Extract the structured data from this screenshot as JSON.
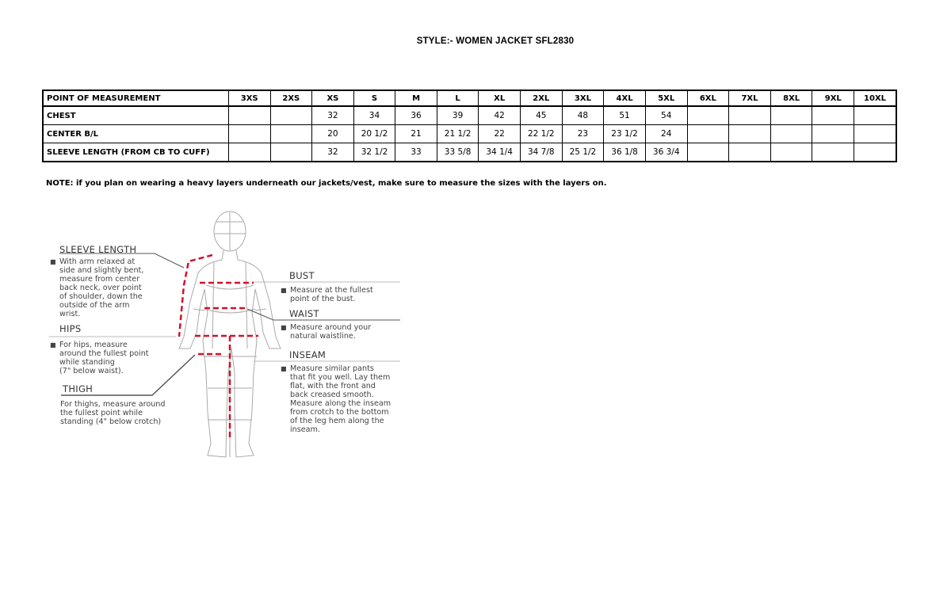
{
  "title": "STYLE:- WOMEN JACKET   SFL2830",
  "table": {
    "header": [
      "POINT OF MEASUREMENT",
      "3XS",
      "2XS",
      "XS",
      "S",
      "M",
      "L",
      "XL",
      "2XL",
      "3XL",
      "4XL",
      "5XL",
      "6XL",
      "7XL",
      "8XL",
      "9XL",
      "10XL"
    ],
    "rows": [
      [
        "CHEST",
        "",
        "",
        "32",
        "34",
        "36",
        "39",
        "42",
        "45",
        "48",
        "51",
        "54",
        "",
        "",
        "",
        "",
        ""
      ],
      [
        "CENTER B/L",
        "",
        "",
        "20",
        "20 1/2",
        "21",
        "21 1/2",
        "22",
        "22 1/2",
        "23",
        "23 1/2",
        "24",
        "",
        "",
        "",
        "",
        ""
      ],
      [
        "SLEEVE LENGTH (FROM CB TO CUFF)",
        "",
        "",
        "32",
        "32 1/2",
        "33",
        "33 5/8",
        "34 1/4",
        "34 7/8",
        "25 1/2",
        "36 1/8",
        "36 3/4",
        "",
        "",
        "",
        "",
        ""
      ]
    ]
  },
  "note": "NOTE: if you plan on wearing a heavy layers underneath our jackets/vest, make sure to measure the sizes with the layers on.",
  "diagram": {
    "accent_color": "#d0122a",
    "sleeve": {
      "label": "SLEEVE LENGTH",
      "lines": [
        "With arm relaxed at",
        "side and slightly bent,",
        "measure from center",
        "back neck, over point",
        "of shoulder, down the",
        "outside of the arm",
        "wrist."
      ]
    },
    "hips": {
      "label": "HIPS",
      "lines": [
        "For hips, measure",
        "around the fullest point",
        "while standing",
        "(7\" below waist)."
      ]
    },
    "thigh": {
      "label": "THIGH",
      "lines": [
        "For thighs, measure around",
        "the fullest point while",
        "standing (4\" below crotch)"
      ]
    },
    "bust": {
      "label": "BUST",
      "lines": [
        "Measure at the fullest",
        "point of the bust."
      ]
    },
    "waist": {
      "label": "WAIST",
      "lines": [
        "Measure around your",
        "natural waistline."
      ]
    },
    "inseam": {
      "label": "INSEAM",
      "lines": [
        "Measure similar pants",
        "that fit you well. Lay them",
        "flat, with the front and",
        "back creased smooth.",
        "Measure along the inseam",
        "from crotch to the bottom",
        "of the leg hem along the",
        "inseam."
      ]
    }
  }
}
